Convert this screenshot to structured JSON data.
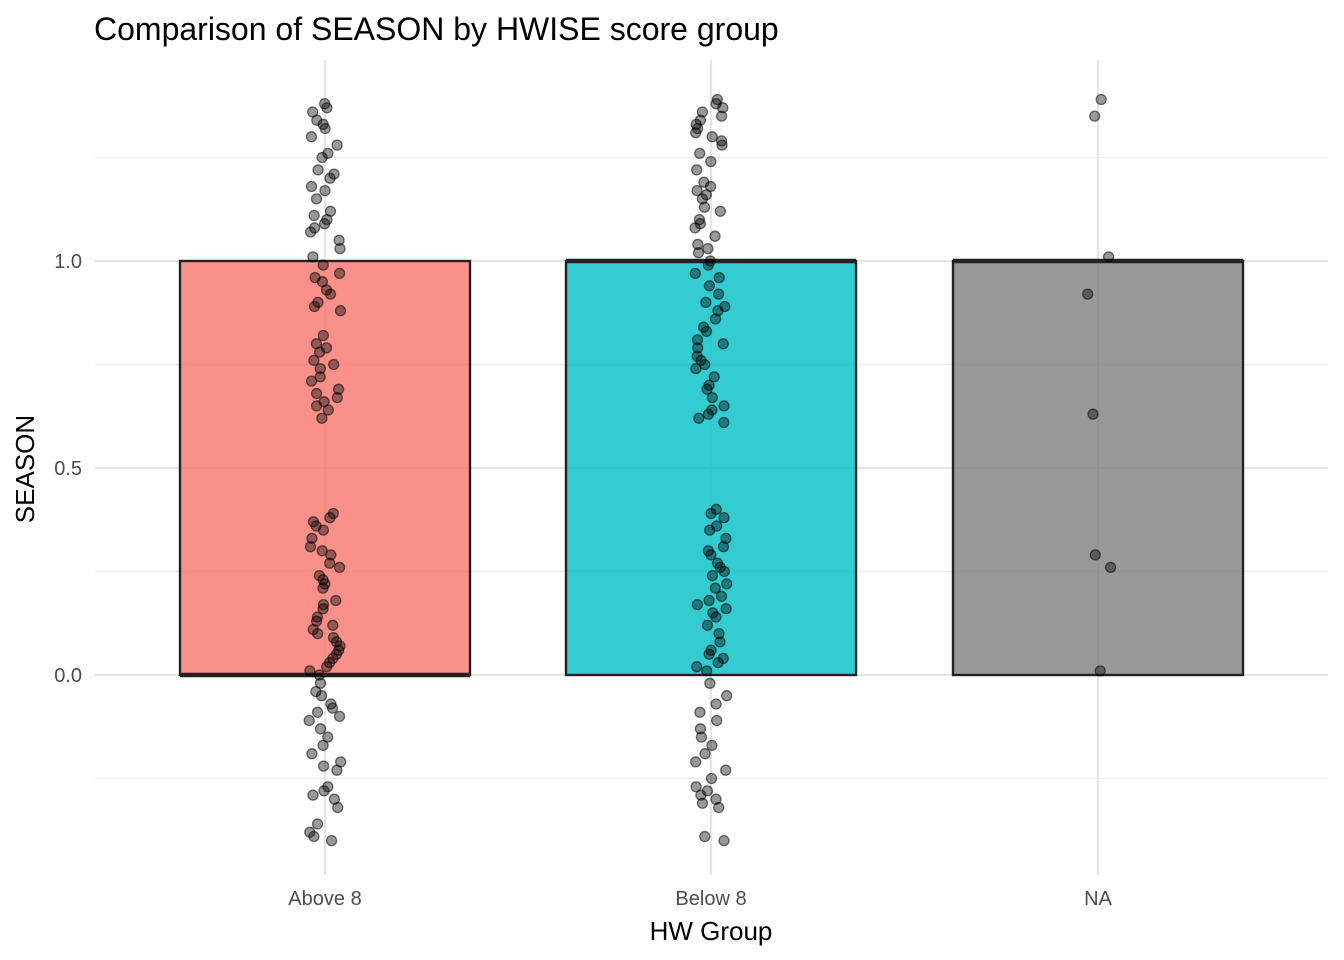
{
  "chart_data": {
    "type": "bar",
    "title": "Comparison of SEASON by HWISE score group",
    "xlabel": "HW Group",
    "ylabel": "SEASON",
    "categories": [
      "Above 8",
      "Below 8",
      "NA"
    ],
    "values": [
      0,
      1,
      1
    ],
    "bar_range": [
      [
        0,
        1
      ],
      [
        0,
        1
      ],
      [
        0,
        1
      ]
    ],
    "bar_colors": [
      "#F8766D",
      "#00BFC4",
      "#7F7F7F"
    ],
    "bar_opacity": 0.8,
    "ylim": [
      -0.48,
      1.48
    ],
    "yticks": [
      0.0,
      0.5,
      1.0
    ],
    "ytick_labels": [
      "0.0",
      "0.5",
      "1.0"
    ],
    "grid": true,
    "legend": "none",
    "jitter_points": [
      {
        "category": "Above 8",
        "values": [
          1.38,
          1.37,
          1.36,
          1.34,
          1.33,
          1.32,
          1.3,
          1.28,
          1.26,
          1.25,
          1.22,
          1.21,
          1.2,
          1.18,
          1.17,
          1.15,
          1.12,
          1.11,
          1.1,
          1.09,
          1.08,
          1.07,
          1.05,
          1.03,
          1.01,
          0.99,
          0.97,
          0.96,
          0.95,
          0.93,
          0.92,
          0.9,
          0.89,
          0.88,
          0.82,
          0.8,
          0.79,
          0.78,
          0.76,
          0.75,
          0.74,
          0.72,
          0.71,
          0.69,
          0.68,
          0.67,
          0.66,
          0.65,
          0.64,
          0.62,
          0.39,
          0.38,
          0.37,
          0.36,
          0.35,
          0.33,
          0.31,
          0.3,
          0.29,
          0.27,
          0.26,
          0.24,
          0.23,
          0.22,
          0.21,
          0.18,
          0.17,
          0.16,
          0.14,
          0.13,
          0.12,
          0.11,
          0.1,
          0.09,
          0.08,
          0.07,
          0.06,
          0.05,
          0.04,
          0.03,
          0.02,
          0.01,
          0.0,
          -0.02,
          -0.04,
          -0.05,
          -0.07,
          -0.08,
          -0.09,
          -0.1,
          -0.11,
          -0.13,
          -0.15,
          -0.17,
          -0.19,
          -0.21,
          -0.22,
          -0.23,
          -0.27,
          -0.28,
          -0.29,
          -0.3,
          -0.32,
          -0.36,
          -0.38,
          -0.39,
          -0.4
        ]
      },
      {
        "category": "Below 8",
        "values": [
          1.39,
          1.38,
          1.37,
          1.36,
          1.35,
          1.34,
          1.33,
          1.32,
          1.31,
          1.3,
          1.29,
          1.28,
          1.26,
          1.24,
          1.22,
          1.19,
          1.18,
          1.17,
          1.16,
          1.15,
          1.13,
          1.12,
          1.1,
          1.09,
          1.08,
          1.06,
          1.04,
          1.03,
          1.02,
          1.0,
          0.99,
          0.97,
          0.96,
          0.94,
          0.92,
          0.9,
          0.89,
          0.88,
          0.86,
          0.84,
          0.83,
          0.81,
          0.8,
          0.79,
          0.77,
          0.76,
          0.75,
          0.74,
          0.72,
          0.7,
          0.69,
          0.67,
          0.65,
          0.64,
          0.63,
          0.62,
          0.61,
          0.4,
          0.39,
          0.38,
          0.36,
          0.35,
          0.33,
          0.31,
          0.3,
          0.29,
          0.27,
          0.26,
          0.25,
          0.24,
          0.22,
          0.21,
          0.19,
          0.18,
          0.17,
          0.16,
          0.15,
          0.14,
          0.12,
          0.1,
          0.08,
          0.06,
          0.05,
          0.04,
          0.03,
          0.02,
          0.01,
          -0.02,
          -0.05,
          -0.07,
          -0.09,
          -0.11,
          -0.13,
          -0.15,
          -0.17,
          -0.19,
          -0.21,
          -0.23,
          -0.25,
          -0.27,
          -0.28,
          -0.29,
          -0.3,
          -0.31,
          -0.32,
          -0.39,
          -0.4
        ]
      },
      {
        "category": "NA",
        "values": [
          1.39,
          1.35,
          1.01,
          0.92,
          0.63,
          0.29,
          0.26,
          0.01
        ]
      }
    ]
  }
}
